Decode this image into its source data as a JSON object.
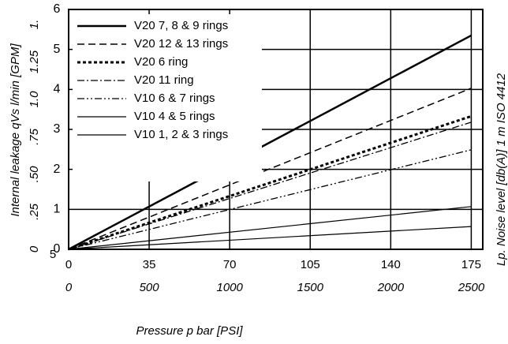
{
  "chart_data": {
    "type": "line",
    "xlabel": "Pressure p bar [PSI]",
    "ylabel": "Internal leakage qVs l/min [GPM]",
    "y3label": "Lp. Noise level [db(A)] 1 m ISO 4412",
    "annotation": "5",
    "x": [
      0,
      175
    ],
    "xlim": [
      0,
      180
    ],
    "xticks": [
      0,
      35,
      70,
      105,
      140,
      175
    ],
    "x2lim": [
      0,
      2571
    ],
    "x2ticks": [
      0,
      500,
      1000,
      1500,
      2000,
      2500
    ],
    "ylim": [
      0,
      6
    ],
    "yticks": [
      0,
      1,
      2,
      3,
      4,
      5,
      6
    ],
    "y2lim": [
      0,
      1.6
    ],
    "y2ticks": [
      0,
      {
        "value": 0.25,
        "label": ".25"
      },
      {
        "value": 0.5,
        "label": ".50"
      },
      {
        "value": 0.75,
        "label": ".75"
      },
      {
        "value": 1,
        "label": "1.0"
      },
      1.25,
      {
        "value": 1.5,
        "label": "1."
      }
    ],
    "grid": true,
    "series": [
      {
        "name": "V20 7, 8  & 9 rings",
        "color": "#000000",
        "width": 2.5,
        "dash": "none",
        "values": [
          0,
          5.35
        ]
      },
      {
        "name": "V20 12 & 13 rings",
        "color": "#000000",
        "width": 1.5,
        "dash": "9 5",
        "values": [
          0,
          4.03
        ]
      },
      {
        "name": "V20 6 ring",
        "color": "#000000",
        "width": 3,
        "dash": "4 3",
        "values": [
          0,
          3.33
        ]
      },
      {
        "name": "V20 11 ring",
        "color": "#000000",
        "width": 1.3,
        "dash": "9 3 2 3",
        "values": [
          0,
          3.18
        ]
      },
      {
        "name": "V10 6 & 7 rings",
        "color": "#000000",
        "width": 1.3,
        "dash": "9 3 2 3 2 3",
        "values": [
          0,
          2.49
        ]
      },
      {
        "name": "V10 4 & 5 rings",
        "color": "#000000",
        "width": 1.2,
        "dash": "none",
        "values": [
          0,
          1.07
        ]
      },
      {
        "name": "V10 1, 2 & 3 rings",
        "color": "#000000",
        "width": 1.2,
        "dash": "none",
        "values": [
          0,
          0.57
        ]
      }
    ]
  }
}
